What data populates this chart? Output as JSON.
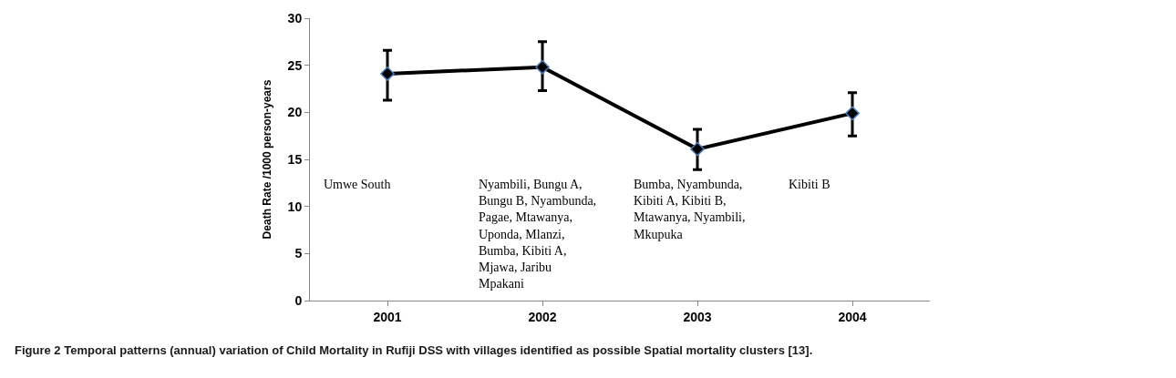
{
  "chart_data": {
    "type": "line",
    "ylabel": "Death Rate /1000 person-years",
    "categories": [
      "2001",
      "2002",
      "2003",
      "2004"
    ],
    "series": [
      {
        "color": "#000000",
        "values": [
          24.1,
          24.8,
          16.1,
          19.9
        ],
        "errors": [
          [
            21.3,
            26.6
          ],
          [
            22.3,
            27.5
          ],
          [
            13.9,
            18.2
          ],
          [
            17.5,
            22.1
          ]
        ]
      }
    ],
    "ylim": [
      0,
      30
    ],
    "yticks": [
      0,
      5,
      10,
      15,
      20,
      25,
      30
    ],
    "legend": false,
    "marker": "diamond",
    "line_style": "solid",
    "annotations": [
      "Umwe South",
      "Nyambili, Bungu A, Bungu B, Nyambunda, Pagae, Mtawanya, Uponda, Mlanzi, Bumba, Kibiti A, Mjawa, Jaribu Mpakani",
      "Bumba, Nyambunda, Kibiti A, Kibiti B, Mtawanya, Nyambili, Mkupuka",
      "Kibiti B",
      "Figure 2 Temporal patterns (annual) variation of Child Mortality in Rufiji DSS with villages identified as possible Spatial mortality clusters [13]."
    ]
  }
}
